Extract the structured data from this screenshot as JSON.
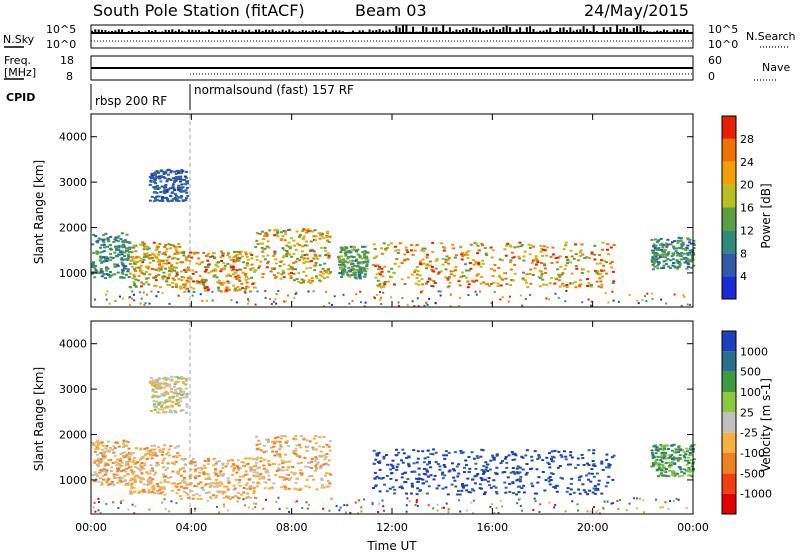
{
  "header": {
    "station": "South Pole Station (fitACF)",
    "beam": "Beam 03",
    "date": "24/May/2015"
  },
  "status_panels": {
    "nsky_label": "N.Sky",
    "nsky_ticks": [
      "10^5",
      "10^0"
    ],
    "nsearch_label": "N.Search",
    "nsearch_ticks": [
      "10^5",
      "10^0"
    ],
    "freq_label_line1": "Freq.",
    "freq_label_line2": "[MHz]",
    "freq_ticks": [
      "18",
      "8"
    ],
    "nave_label": "Nave",
    "nave_ticks": [
      "60",
      "0"
    ],
    "cpid_label": "CPID",
    "cpid_modes": [
      {
        "label": "rbsp 200 RF",
        "start_hour": 0.0
      },
      {
        "label": "normalsound (fast) 157 RF",
        "start_hour": 4.0
      }
    ]
  },
  "chart_data": [
    {
      "type": "heatmap",
      "title": "",
      "quantity": "Power",
      "colorbar_label": "Power [dB]",
      "colorbar_ticks": [
        "4",
        "8",
        "12",
        "16",
        "20",
        "24",
        "28"
      ],
      "colorbar_colors": [
        "#1a2bd6",
        "#2e5aa8",
        "#2f8a7a",
        "#5aa040",
        "#b8c020",
        "#f0a000",
        "#f07000",
        "#e82000"
      ],
      "xlabel": "",
      "ylabel": "Slant Range [km]",
      "xlim_hours": [
        0,
        24
      ],
      "ylim": [
        250,
        4500
      ],
      "yticks": [
        "1000",
        "2000",
        "3000",
        "4000"
      ],
      "echo_regions": [
        {
          "t_start": 0.0,
          "t_end": 1.5,
          "range_low": 900,
          "range_high": 1900,
          "peak_power": 14
        },
        {
          "t_start": 1.5,
          "t_end": 3.5,
          "range_low": 700,
          "range_high": 1700,
          "peak_power": 26
        },
        {
          "t_start": 2.3,
          "t_end": 3.8,
          "range_low": 2600,
          "range_high": 3300,
          "peak_power": 8
        },
        {
          "t_start": 3.5,
          "t_end": 6.5,
          "range_low": 600,
          "range_high": 1500,
          "peak_power": 28
        },
        {
          "t_start": 6.5,
          "t_end": 9.5,
          "range_low": 800,
          "range_high": 2000,
          "peak_power": 26
        },
        {
          "t_start": 9.8,
          "t_end": 11.0,
          "range_low": 900,
          "range_high": 1600,
          "peak_power": 16
        },
        {
          "t_start": 11.2,
          "t_end": 20.8,
          "range_low": 700,
          "range_high": 1700,
          "peak_power": 28
        },
        {
          "t_start": 22.3,
          "t_end": 24.0,
          "range_low": 1100,
          "range_high": 1800,
          "peak_power": 14
        }
      ]
    },
    {
      "type": "heatmap",
      "title": "",
      "quantity": "Velocity",
      "colorbar_label": "Velocity [m s-1]",
      "colorbar_ticks": [
        "1000",
        "500",
        "100",
        "25",
        "-25",
        "-100",
        "-500",
        "-1000"
      ],
      "colorbar_colors": [
        "#1c3fbf",
        "#2c6f8a",
        "#3f9a3f",
        "#8ac840",
        "#c0c0c0",
        "#f5b040",
        "#f08020",
        "#f04010",
        "#e00000"
      ],
      "xlabel": "Time UT",
      "ylabel": "Slant Range [km]",
      "xlim_hours": [
        0,
        24
      ],
      "ylim": [
        250,
        4500
      ],
      "xticks": [
        "00:00",
        "04:00",
        "08:00",
        "12:00",
        "16:00",
        "20:00",
        "00:00"
      ],
      "yticks": [
        "1000",
        "2000",
        "3000",
        "4000"
      ],
      "echo_regions": [
        {
          "t_start": 0.0,
          "t_end": 1.5,
          "range_low": 900,
          "range_high": 1900,
          "velocity": -100
        },
        {
          "t_start": 1.5,
          "t_end": 3.5,
          "range_low": 700,
          "range_high": 1800,
          "velocity": -100
        },
        {
          "t_start": 2.3,
          "t_end": 3.8,
          "range_low": 2500,
          "range_high": 3300,
          "velocity": 0
        },
        {
          "t_start": 3.5,
          "t_end": 6.5,
          "range_low": 600,
          "range_high": 1500,
          "velocity": -100
        },
        {
          "t_start": 6.5,
          "t_end": 9.5,
          "range_low": 800,
          "range_high": 2000,
          "velocity": -100
        },
        {
          "t_start": 11.2,
          "t_end": 20.8,
          "range_low": 700,
          "range_high": 1700,
          "velocity": 500
        },
        {
          "t_start": 22.3,
          "t_end": 24.0,
          "range_low": 1100,
          "range_high": 1800,
          "velocity": 100
        }
      ]
    }
  ]
}
